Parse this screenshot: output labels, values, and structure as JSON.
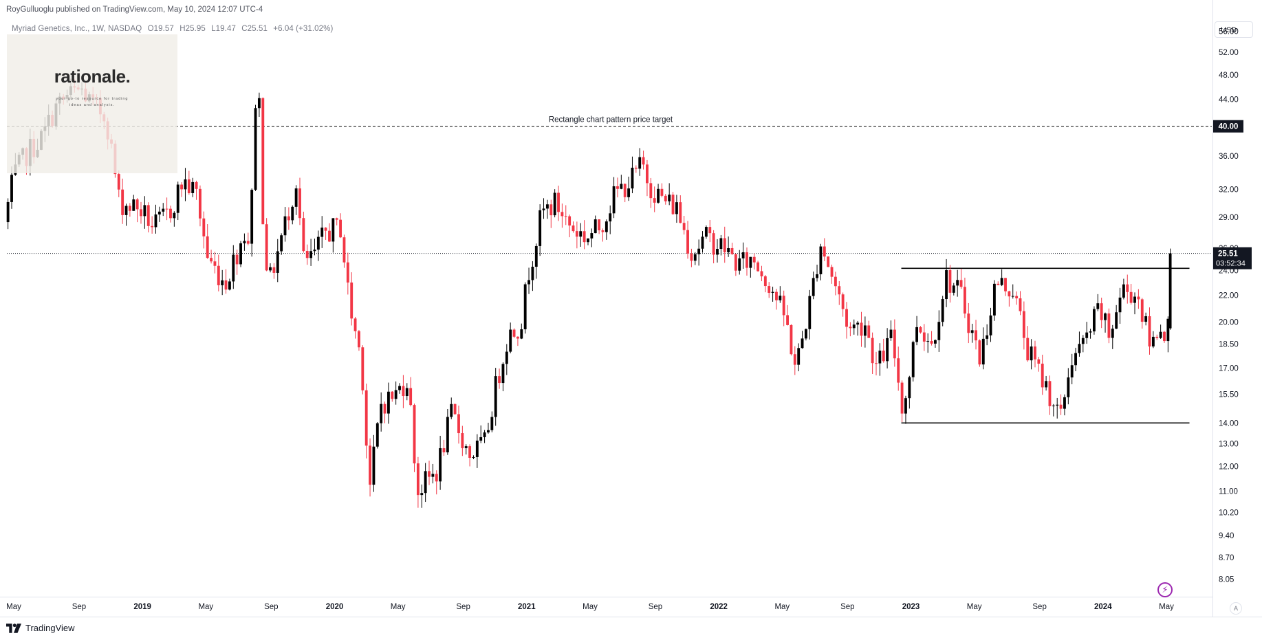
{
  "header": {
    "publisher": "RoyGulluoglu published on TradingView.com, May 10, 2024 12:07 UTC-4",
    "symbol": "Myriad Genetics, Inc., 1W, NASDAQ",
    "open": "O19.57",
    "high": "H25.95",
    "low": "L19.47",
    "close": "C25.51",
    "change": "+6.04 (+31.02%)"
  },
  "watermark": {
    "word": "rationale.",
    "tagline": "your go-to resource for trading ideas and analysis."
  },
  "currency": "USD",
  "auto_scale_label": "A",
  "footer_brand": "TradingView",
  "colors": {
    "up": "#000000",
    "down": "#f23645",
    "grid": "#ffffff",
    "line": "#000000",
    "price_tag_bg": "#131722",
    "price_tag_fg": "#ffffff"
  },
  "chart_data": {
    "type": "candlestick",
    "ylim": [
      7.7,
      58
    ],
    "y_scale": "log",
    "y_ticks": [
      "56.00",
      "52.00",
      "48.00",
      "44.00",
      "40.00",
      "36.00",
      "32.00",
      "29.00",
      "26.00",
      "24.00",
      "22.00",
      "20.00",
      "18.50",
      "17.00",
      "15.50",
      "14.00",
      "13.00",
      "12.00",
      "11.00",
      "10.20",
      "9.40",
      "8.70",
      "8.05"
    ],
    "x_ticks": [
      {
        "label": "May",
        "t": 2018.33,
        "bold": false
      },
      {
        "label": "Sep",
        "t": 2018.67,
        "bold": false
      },
      {
        "label": "2019",
        "t": 2019.0,
        "bold": true
      },
      {
        "label": "May",
        "t": 2019.33,
        "bold": false
      },
      {
        "label": "Sep",
        "t": 2019.67,
        "bold": false
      },
      {
        "label": "2020",
        "t": 2020.0,
        "bold": true
      },
      {
        "label": "May",
        "t": 2020.33,
        "bold": false
      },
      {
        "label": "Sep",
        "t": 2020.67,
        "bold": false
      },
      {
        "label": "2021",
        "t": 2021.0,
        "bold": true
      },
      {
        "label": "May",
        "t": 2021.33,
        "bold": false
      },
      {
        "label": "Sep",
        "t": 2021.67,
        "bold": false
      },
      {
        "label": "2022",
        "t": 2022.0,
        "bold": true
      },
      {
        "label": "May",
        "t": 2022.33,
        "bold": false
      },
      {
        "label": "Sep",
        "t": 2022.67,
        "bold": false
      },
      {
        "label": "2023",
        "t": 2023.0,
        "bold": true
      },
      {
        "label": "May",
        "t": 2023.33,
        "bold": false
      },
      {
        "label": "Sep",
        "t": 2023.67,
        "bold": false
      },
      {
        "label": "2024",
        "t": 2024.0,
        "bold": true
      },
      {
        "label": "May",
        "t": 2024.33,
        "bold": false
      }
    ],
    "price_target": {
      "value": 40.0,
      "label": "40.00",
      "text": "Rectangle chart pattern price target"
    },
    "last_price": {
      "value": 25.51,
      "label": "25.51",
      "countdown": "03:52:34"
    },
    "rectangle": {
      "top": 24.2,
      "bottom": 14.0,
      "t_start": 2022.95,
      "t_end": 2024.45
    },
    "anchors": [
      [
        2018.3,
        28.5
      ],
      [
        2018.35,
        33.5
      ],
      [
        2018.42,
        36.5
      ],
      [
        2018.5,
        38.5
      ],
      [
        2018.56,
        42.5
      ],
      [
        2018.63,
        44.5
      ],
      [
        2018.7,
        45.5
      ],
      [
        2018.76,
        43.0
      ],
      [
        2018.83,
        41.5
      ],
      [
        2018.9,
        30.5
      ],
      [
        2019.0,
        30.0
      ],
      [
        2019.08,
        28.0
      ],
      [
        2019.16,
        29.5
      ],
      [
        2019.23,
        33.0
      ],
      [
        2019.3,
        31.5
      ],
      [
        2019.36,
        25.0
      ],
      [
        2019.45,
        23.0
      ],
      [
        2019.55,
        27.5
      ],
      [
        2019.58,
        26.5
      ],
      [
        2019.61,
        46.0
      ],
      [
        2019.63,
        43.0
      ],
      [
        2019.65,
        27.0
      ],
      [
        2019.68,
        23.0
      ],
      [
        2019.75,
        27.5
      ],
      [
        2019.82,
        33.0
      ],
      [
        2019.86,
        24.5
      ],
      [
        2019.92,
        25.5
      ],
      [
        2019.97,
        27.5
      ],
      [
        2020.05,
        28.0
      ],
      [
        2020.1,
        21.0
      ],
      [
        2020.16,
        17.5
      ],
      [
        2020.2,
        11.0
      ],
      [
        2020.26,
        15.0
      ],
      [
        2020.34,
        15.5
      ],
      [
        2020.4,
        16.5
      ],
      [
        2020.45,
        11.0
      ],
      [
        2020.55,
        11.8
      ],
      [
        2020.63,
        14.5
      ],
      [
        2020.72,
        12.5
      ],
      [
        2020.8,
        13.0
      ],
      [
        2020.86,
        16.0
      ],
      [
        2020.92,
        19.0
      ],
      [
        2020.99,
        20.0
      ],
      [
        2021.03,
        24.0
      ],
      [
        2021.1,
        29.5
      ],
      [
        2021.17,
        30.5
      ],
      [
        2021.25,
        28.0
      ],
      [
        2021.33,
        27.0
      ],
      [
        2021.4,
        28.0
      ],
      [
        2021.48,
        31.5
      ],
      [
        2021.56,
        33.0
      ],
      [
        2021.62,
        35.0
      ],
      [
        2021.66,
        32.5
      ],
      [
        2021.72,
        31.0
      ],
      [
        2021.8,
        30.0
      ],
      [
        2021.88,
        25.5
      ],
      [
        2021.95,
        27.0
      ],
      [
        2022.05,
        26.0
      ],
      [
        2022.12,
        24.5
      ],
      [
        2022.2,
        25.0
      ],
      [
        2022.3,
        22.5
      ],
      [
        2022.37,
        20.0
      ],
      [
        2022.42,
        17.0
      ],
      [
        2022.48,
        20.5
      ],
      [
        2022.55,
        26.5
      ],
      [
        2022.62,
        23.0
      ],
      [
        2022.7,
        19.5
      ],
      [
        2022.78,
        20.0
      ],
      [
        2022.84,
        17.0
      ],
      [
        2022.92,
        19.0
      ],
      [
        2022.98,
        14.5
      ],
      [
        2023.05,
        20.0
      ],
      [
        2023.13,
        18.5
      ],
      [
        2023.2,
        23.5
      ],
      [
        2023.28,
        22.0
      ],
      [
        2023.38,
        17.5
      ],
      [
        2023.46,
        23.0
      ],
      [
        2023.55,
        22.5
      ],
      [
        2023.63,
        18.0
      ],
      [
        2023.72,
        16.0
      ],
      [
        2023.8,
        14.2
      ],
      [
        2023.85,
        17.5
      ],
      [
        2023.92,
        18.5
      ],
      [
        2024.0,
        21.0
      ],
      [
        2024.05,
        19.0
      ],
      [
        2024.12,
        22.5
      ],
      [
        2024.2,
        22.0
      ],
      [
        2024.27,
        18.2
      ],
      [
        2024.3,
        19.57
      ]
    ],
    "last_candle": {
      "t": 2024.35,
      "o": 19.57,
      "h": 25.95,
      "l": 19.47,
      "c": 25.51
    }
  }
}
